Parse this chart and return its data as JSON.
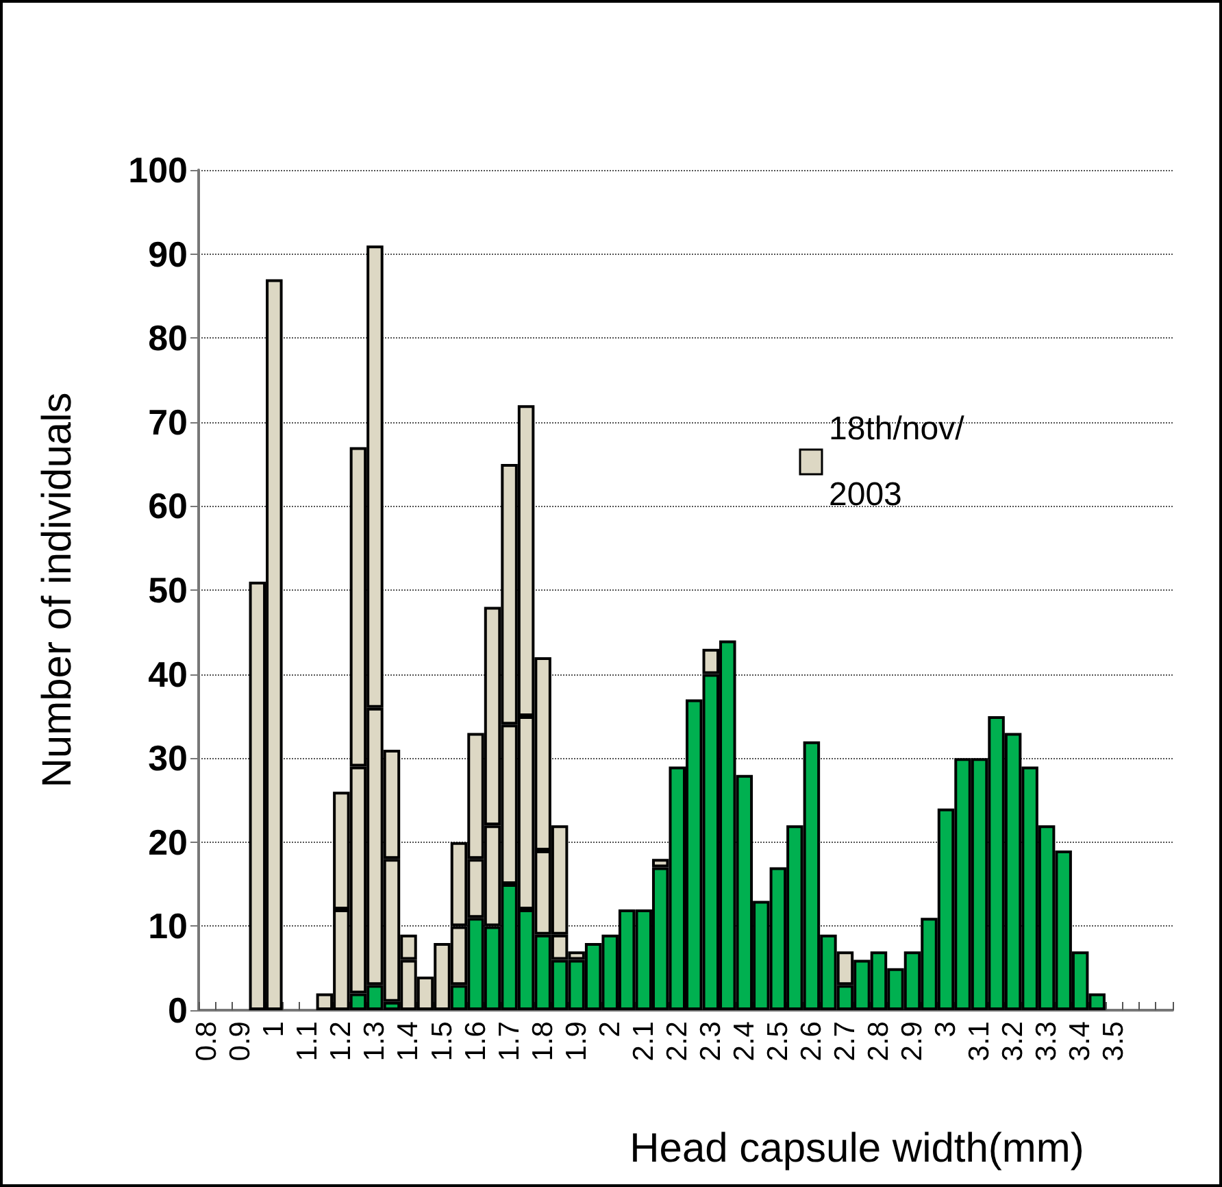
{
  "chart_data": {
    "type": "bar",
    "xlabel": "Head capsule width(mm)",
    "ylabel": "Number of individuals",
    "categories": [
      "0.8",
      null,
      "0.9",
      null,
      "1",
      null,
      "1.1",
      null,
      "1.2",
      null,
      "1.3",
      null,
      "1.4",
      null,
      "1.5",
      null,
      "1.6",
      null,
      "1.7",
      null,
      "1.8",
      null,
      "1.9",
      null,
      "2",
      null,
      "2.1",
      null,
      "2.2",
      null,
      "2.3",
      null,
      "2.4",
      null,
      "2.5",
      null,
      "2.6",
      null,
      "2.7",
      null,
      "2.8",
      null,
      "2.9",
      null,
      "3",
      null,
      "3.1",
      null,
      "3.2",
      null,
      "3.3",
      null,
      "3.4",
      null,
      "3.5",
      null,
      null,
      null
    ],
    "series": [
      {
        "color": "#00b050",
        "values": [
          0,
          0,
          0,
          0,
          0,
          0,
          0,
          0,
          0,
          2,
          3,
          1,
          0,
          0,
          0,
          3,
          11,
          10,
          15,
          12,
          9,
          6,
          6,
          8,
          9,
          12,
          12,
          17,
          29,
          37,
          40,
          44,
          28,
          13,
          17,
          22,
          32,
          9,
          3,
          6,
          7,
          5,
          7,
          11,
          24,
          30,
          30,
          35,
          33,
          29,
          22,
          19,
          7,
          2,
          0,
          0,
          0,
          0
        ]
      },
      {
        "color": "#ddd8c4",
        "values": [
          0,
          0,
          0,
          0,
          0,
          0,
          0,
          0,
          12,
          27,
          33,
          17,
          6,
          0,
          0,
          7,
          7,
          12,
          19,
          23,
          10,
          3,
          0,
          0,
          0,
          0,
          0,
          0,
          0,
          0,
          0,
          0,
          0,
          0,
          0,
          0,
          0,
          0,
          0,
          0,
          0,
          0,
          0,
          0,
          0,
          0,
          0,
          0,
          0,
          0,
          0,
          0,
          0,
          0,
          0,
          0,
          0,
          0
        ]
      },
      {
        "name": "18th/nov/2003",
        "color": "#ddd8c4",
        "values": [
          0,
          0,
          0,
          51,
          87,
          0,
          0,
          2,
          14,
          38,
          55,
          13,
          3,
          4,
          8,
          10,
          15,
          26,
          31,
          37,
          23,
          13,
          1,
          0,
          0,
          0,
          0,
          1,
          0,
          0,
          3,
          0,
          0,
          0,
          0,
          0,
          0,
          0,
          4,
          0,
          0,
          0,
          0,
          0,
          0,
          0,
          0,
          0,
          0,
          0,
          0,
          0,
          0,
          0,
          0,
          0,
          0,
          0
        ]
      }
    ],
    "stacked": true,
    "ylim": [
      0,
      100
    ],
    "yticks": [
      0,
      10,
      20,
      30,
      40,
      50,
      60,
      70,
      80,
      90,
      100
    ],
    "grid": "y",
    "legend": "top right"
  }
}
